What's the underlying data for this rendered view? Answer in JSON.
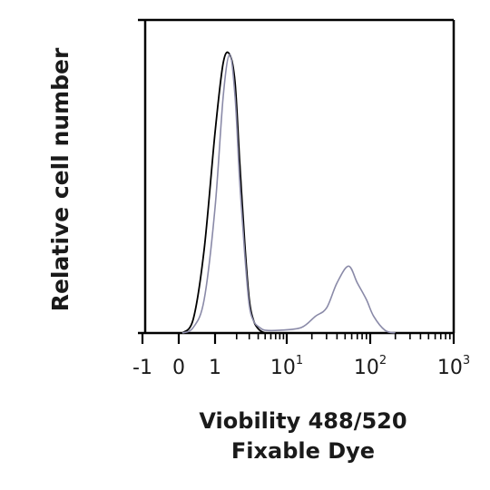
{
  "chart_data": {
    "type": "line",
    "title": "",
    "xlabel_lines": [
      "Viobility 488/520",
      "Fixable Dye"
    ],
    "ylabel": "Relative cell number",
    "x_scale": "biexponential",
    "xlim": [
      -1,
      1000
    ],
    "ylim": [
      0,
      1
    ],
    "ticks": [
      {
        "value": -1,
        "label": "-1",
        "sup": ""
      },
      {
        "value": 0,
        "label": "0",
        "sup": ""
      },
      {
        "value": 1,
        "label": "1",
        "sup": ""
      },
      {
        "value": 10,
        "label": "10",
        "sup": "1"
      },
      {
        "value": 100,
        "label": "10",
        "sup": "2"
      },
      {
        "value": 1000,
        "label": "10",
        "sup": "3"
      }
    ],
    "grid": false,
    "legend": "none",
    "series": [
      {
        "color": "#000000",
        "x": [
          0.1,
          0.4,
          0.7,
          1.0,
          1.3,
          1.6,
          1.9,
          2.2,
          2.6,
          3.0,
          3.5,
          4.2,
          5.0
        ],
        "y": [
          0.0,
          0.05,
          0.3,
          0.72,
          0.97,
          1.0,
          0.9,
          0.62,
          0.32,
          0.12,
          0.04,
          0.01,
          0.0
        ]
      },
      {
        "color": "#8a8aa8",
        "x": [
          0.1,
          0.4,
          0.7,
          1.0,
          1.3,
          1.6,
          1.9,
          2.2,
          2.6,
          3.0,
          3.5,
          4.2,
          5.0,
          8,
          15,
          22,
          30,
          40,
          55,
          70,
          90,
          110,
          150,
          200
        ],
        "y": [
          0.0,
          0.02,
          0.12,
          0.45,
          0.85,
          1.0,
          0.85,
          0.55,
          0.28,
          0.1,
          0.04,
          0.02,
          0.01,
          0.01,
          0.02,
          0.06,
          0.09,
          0.18,
          0.24,
          0.18,
          0.12,
          0.06,
          0.01,
          0.0
        ]
      }
    ]
  }
}
